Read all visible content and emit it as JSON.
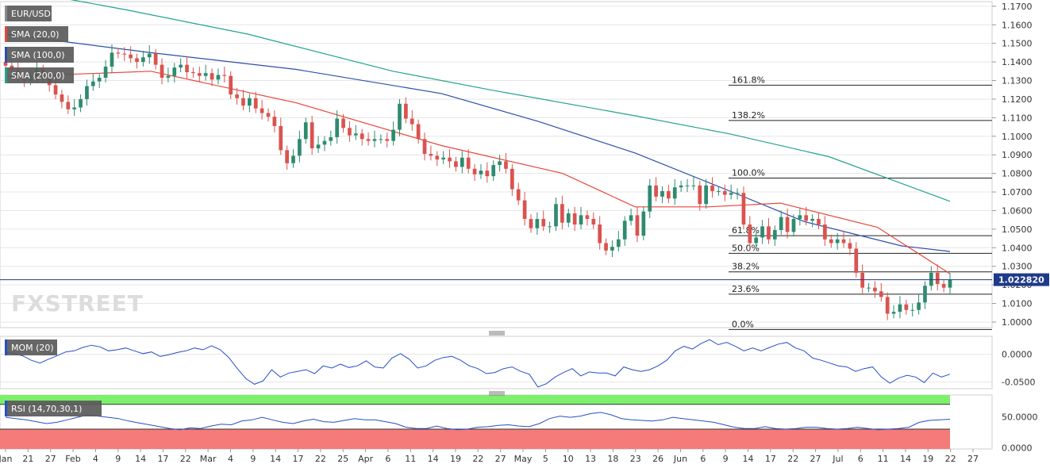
{
  "watermark": "FXSTREET",
  "colors": {
    "up": "#2e8b6f",
    "down": "#d9534f",
    "sma20": "#e8473a",
    "sma100": "#2b4fa8",
    "sma200": "#22a28c",
    "mom": "#2450c8",
    "rsi": "#2450c8",
    "price_line": "#1f3a8a",
    "grid": "#e6e6e6",
    "rsi_overbought_fill": "#7cf06b",
    "rsi_oversold_fill": "#f57a7a"
  },
  "chart_data": [
    {
      "type": "candlestick",
      "panel": "price",
      "legend": [
        "EUR/USD",
        "SMA (20,0)",
        "SMA (100,0)",
        "SMA (200,0)"
      ],
      "ylim": [
        0.997,
        1.1725
      ],
      "y_ticks": [
        "1.0000",
        "1.0100",
        "1.0200",
        "1.0300",
        "1.0400",
        "1.0500",
        "1.0600",
        "1.0700",
        "1.0800",
        "1.0900",
        "1.1000",
        "1.1100",
        "1.1200",
        "1.1300",
        "1.1400",
        "1.1500",
        "1.1600",
        "1.1700"
      ],
      "current_price": "1.022820",
      "current_value": 1.0228,
      "x_axis_labels": [
        "Jan",
        "21",
        "27",
        "Feb",
        "4",
        "9",
        "14",
        "17",
        "22",
        "Mar",
        "4",
        "9",
        "14",
        "17",
        "22",
        "25",
        "Apr",
        "6",
        "11",
        "14",
        "19",
        "22",
        "27",
        "May",
        "5",
        "10",
        "13",
        "18",
        "23",
        "26",
        "Jun",
        "6",
        "9",
        "14",
        "17",
        "22",
        "27",
        "Jul",
        "6",
        "11",
        "14",
        "19",
        "22",
        "27"
      ],
      "candles_close": [
        1.138,
        1.1355,
        1.1315,
        1.13,
        1.1325,
        1.136,
        1.131,
        1.1275,
        1.1225,
        1.1185,
        1.1145,
        1.1155,
        1.12,
        1.127,
        1.1295,
        1.1315,
        1.1375,
        1.145,
        1.1445,
        1.144,
        1.142,
        1.14,
        1.1425,
        1.1445,
        1.1385,
        1.1315,
        1.1325,
        1.137,
        1.1385,
        1.1345,
        1.134,
        1.1325,
        1.134,
        1.1305,
        1.133,
        1.1325,
        1.1225,
        1.1205,
        1.1165,
        1.1205,
        1.115,
        1.1125,
        1.1105,
        1.1055,
        1.0925,
        1.0855,
        1.0895,
        1.0985,
        1.1075,
        1.0935,
        1.0955,
        1.0975,
        1.0995,
        1.1095,
        1.1045,
        1.1005,
        1.1015,
        1.0985,
        1.0975,
        1.0985,
        1.0985,
        1.0975,
        1.1035,
        1.1175,
        1.1095,
        1.1065,
        1.0985,
        1.0905,
        1.0895,
        1.0875,
        1.0885,
        1.0865,
        1.0835,
        1.0885,
        1.0825,
        1.0795,
        1.0815,
        1.0785,
        1.0845,
        1.0865,
        1.0825,
        1.0715,
        1.0655,
        1.0555,
        1.0505,
        1.0555,
        1.0515,
        1.0515,
        1.0635,
        1.0535,
        1.0585,
        1.0525,
        1.0575,
        1.0555,
        1.0525,
        1.0425,
        1.0385,
        1.0405,
        1.0445,
        1.0545,
        1.0575,
        1.0465,
        1.0595,
        1.0735,
        1.0675,
        1.0705,
        1.0665,
        1.0725,
        1.0735,
        1.0735,
        1.0735,
        1.0635,
        1.0735,
        1.0705,
        1.0705,
        1.0685,
        1.0695,
        1.0695,
        1.0525,
        1.0425,
        1.0455,
        1.0515,
        1.0445,
        1.0495,
        1.0565,
        1.0485,
        1.0555,
        1.0575,
        1.0545,
        1.0555,
        1.0525,
        1.0445,
        1.0425,
        1.0445,
        1.0425,
        1.0395,
        1.0265,
        1.0185,
        1.0185,
        1.0165,
        1.0135,
        1.0045,
        1.0055,
        1.0095,
        1.0065,
        1.0065,
        1.0105,
        1.0195,
        1.0265,
        1.0205,
        1.0185,
        1.0228
      ],
      "fibonacci": [
        {
          "label": "161.8%",
          "value": 1.1275
        },
        {
          "label": "138.2%",
          "value": 1.1085
        },
        {
          "label": "100.0%",
          "value": 1.0775
        },
        {
          "label": "61.8%",
          "value": 1.0465
        },
        {
          "label": "50.0%",
          "value": 1.037
        },
        {
          "label": "38.2%",
          "value": 1.027
        },
        {
          "label": "23.6%",
          "value": 1.015
        },
        {
          "label": "0.0%",
          "value": 0.996
        }
      ],
      "sma20_approx": [
        [
          0,
          1.132
        ],
        [
          30,
          1.135
        ],
        [
          60,
          1.118
        ],
        [
          90,
          1.095
        ],
        [
          115,
          1.08
        ],
        [
          130,
          1.062
        ],
        [
          145,
          1.062
        ],
        [
          160,
          1.064
        ],
        [
          180,
          1.051
        ],
        [
          195,
          1.026
        ]
      ],
      "sma100_approx": [
        [
          0,
          1.155
        ],
        [
          30,
          1.145
        ],
        [
          60,
          1.136
        ],
        [
          90,
          1.123
        ],
        [
          110,
          1.108
        ],
        [
          130,
          1.091
        ],
        [
          150,
          1.07
        ],
        [
          165,
          1.054
        ],
        [
          185,
          1.041
        ],
        [
          195,
          1.038
        ]
      ],
      "sma200_approx": [
        [
          0,
          1.18
        ],
        [
          25,
          1.168
        ],
        [
          50,
          1.155
        ],
        [
          80,
          1.135
        ],
        [
          100,
          1.125
        ],
        [
          130,
          1.111
        ],
        [
          150,
          1.101
        ],
        [
          170,
          1.089
        ],
        [
          195,
          1.065
        ]
      ]
    },
    {
      "type": "line",
      "panel": "momentum",
      "legend": "MOM (20)",
      "ylim": [
        -0.062,
        0.032
      ],
      "y_ticks": [
        "0.0000",
        "-0.0500"
      ],
      "values": [
        0.003,
        0.001,
        -0.003,
        -0.011,
        -0.016,
        -0.009,
        -0.003,
        0.004,
        0.006,
        0.012,
        0.016,
        0.013,
        0.006,
        0.008,
        0.011,
        0.006,
        0.001,
        0.004,
        -0.004,
        -0.001,
        0.003,
        0.006,
        0.011,
        0.008,
        0.015,
        0.008,
        -0.006,
        -0.026,
        -0.044,
        -0.054,
        -0.048,
        -0.028,
        -0.041,
        -0.034,
        -0.031,
        -0.028,
        -0.035,
        -0.021,
        -0.025,
        -0.018,
        -0.024,
        -0.021,
        -0.012,
        -0.023,
        -0.025,
        -0.007,
        0.001,
        -0.009,
        -0.025,
        -0.021,
        -0.011,
        -0.006,
        -0.004,
        -0.011,
        -0.021,
        -0.026,
        -0.035,
        -0.033,
        -0.026,
        -0.023,
        -0.031,
        -0.036,
        -0.059,
        -0.053,
        -0.041,
        -0.033,
        -0.026,
        -0.039,
        -0.032,
        -0.034,
        -0.034,
        -0.039,
        -0.023,
        -0.028,
        -0.031,
        -0.028,
        -0.021,
        -0.011,
        0.006,
        0.014,
        0.009,
        0.019,
        0.026,
        0.017,
        0.021,
        0.014,
        0.006,
        0.011,
        0.006,
        0.012,
        0.018,
        0.021,
        0.011,
        0.006,
        -0.007,
        -0.011,
        -0.016,
        -0.021,
        -0.023,
        -0.031,
        -0.026,
        -0.023,
        -0.041,
        -0.052,
        -0.043,
        -0.038,
        -0.041,
        -0.051,
        -0.034,
        -0.041,
        -0.036
      ]
    },
    {
      "type": "line",
      "panel": "rsi",
      "legend": "RSI (14,70,30,1)",
      "ylim": [
        -2,
        85
      ],
      "levels": [
        70,
        30
      ],
      "y_ticks": [
        "50.0000",
        "0.0000"
      ],
      "values": [
        49,
        47,
        45,
        42,
        39,
        41,
        45,
        49,
        53,
        51,
        49,
        47,
        43,
        40,
        37,
        34,
        31,
        29,
        32,
        31,
        35,
        38,
        37,
        43,
        45,
        49,
        45,
        41,
        39,
        43,
        46,
        42,
        41,
        44,
        47,
        45,
        45,
        42,
        39,
        33,
        31,
        31,
        35,
        31,
        29,
        30,
        33,
        34,
        36,
        37,
        35,
        34,
        39,
        47,
        51,
        49,
        51,
        55,
        57,
        53,
        47,
        45,
        44,
        43,
        45,
        49,
        47,
        45,
        43,
        41,
        37,
        33,
        31,
        31,
        34,
        31,
        30,
        31,
        33,
        33,
        31,
        30,
        31,
        33,
        31,
        29,
        30,
        31,
        33,
        41,
        44,
        45,
        46
      ]
    }
  ]
}
